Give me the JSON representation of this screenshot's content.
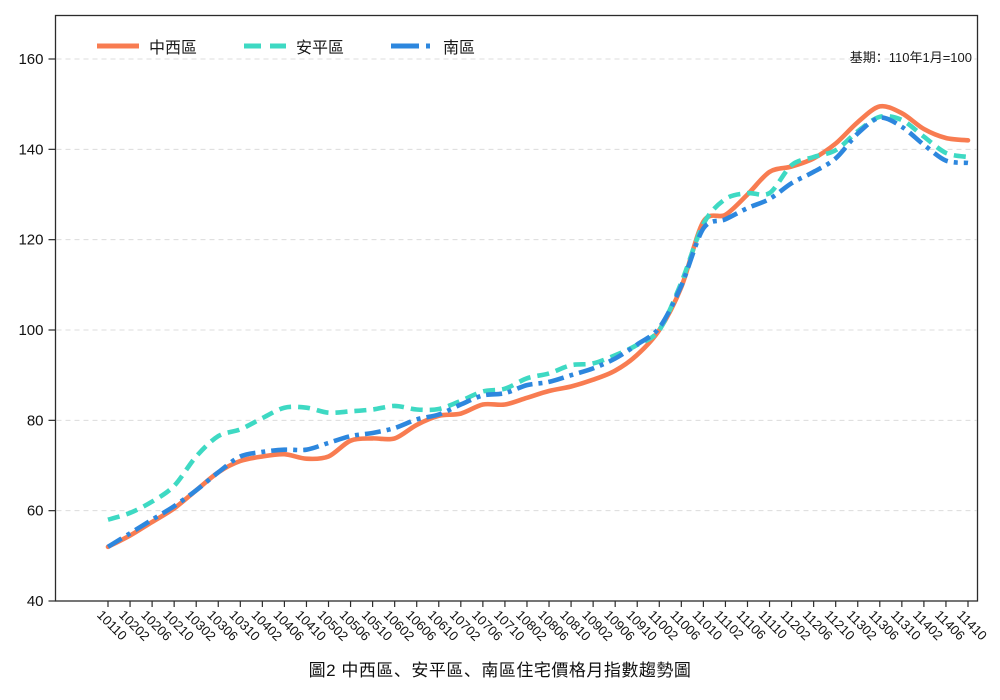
{
  "title": "圖2 中西區、安平區、南區住宅價格月指數趨勢圖",
  "note": "基期：110年1月=100",
  "chart_data": {
    "type": "line",
    "title": "圖2 中西區、安平區、南區住宅價格月指數趨勢圖",
    "note": "基期：110年1月=100",
    "legend_position": "top-left-inside",
    "grid": "horizontal-dashed",
    "ylim": [
      40,
      170
    ],
    "yticks": [
      40,
      60,
      80,
      100,
      120,
      140,
      160
    ],
    "x_labels": [
      "10110",
      "10202",
      "10206",
      "10210",
      "10302",
      "10306",
      "10310",
      "10402",
      "10406",
      "10410",
      "10502",
      "10506",
      "10510",
      "10602",
      "10606",
      "10610",
      "10702",
      "10706",
      "10710",
      "10802",
      "10806",
      "10810",
      "10902",
      "10906",
      "10910",
      "11002",
      "11006",
      "11010",
      "11102",
      "11106",
      "11110",
      "11202",
      "11206",
      "11210",
      "11302",
      "11306",
      "11310",
      "11402",
      "11406",
      "11410"
    ],
    "series": [
      {
        "name": "中西區",
        "color": "#F87C51",
        "style": "solid",
        "values": [
          52,
          54.5,
          57.5,
          60.5,
          64.5,
          68.5,
          71,
          72,
          72.5,
          71.5,
          72,
          75.5,
          76,
          76,
          79,
          81,
          81.5,
          83.5,
          83.5,
          85,
          86.5,
          87.5,
          89,
          91,
          94.5,
          100,
          109.5,
          124,
          125.5,
          130,
          135,
          136.2,
          138,
          141.3,
          146,
          149.5,
          148,
          144.5,
          142.5,
          142
        ]
      },
      {
        "name": "安平區",
        "color": "#3ED9C3",
        "style": "dashed",
        "values": [
          58,
          59.5,
          62,
          65.5,
          72,
          76.5,
          78,
          80.5,
          82.8,
          82.8,
          81.7,
          82,
          82.4,
          83.2,
          82.4,
          82.5,
          84.3,
          86.4,
          87,
          89.3,
          90.4,
          92.2,
          92.6,
          94.4,
          96.7,
          100,
          110.5,
          123.5,
          129,
          130.3,
          130.3,
          136.5,
          138.3,
          139.8,
          144,
          147.2,
          146.5,
          142.8,
          139.2,
          138.3
        ]
      },
      {
        "name": "南區",
        "color": "#2D87DE",
        "style": "dash-dot",
        "values": [
          52,
          55,
          58,
          61,
          64.5,
          68.5,
          72,
          73,
          73.5,
          73.5,
          75,
          76.5,
          77.2,
          78.3,
          80.2,
          81.3,
          83.5,
          85.5,
          86,
          87.8,
          88.5,
          90,
          91.5,
          93.7,
          96.8,
          100.5,
          109.8,
          122.5,
          124.5,
          127,
          129,
          132.5,
          135,
          138,
          143.5,
          147,
          145,
          141,
          137.5,
          137
        ]
      }
    ]
  }
}
